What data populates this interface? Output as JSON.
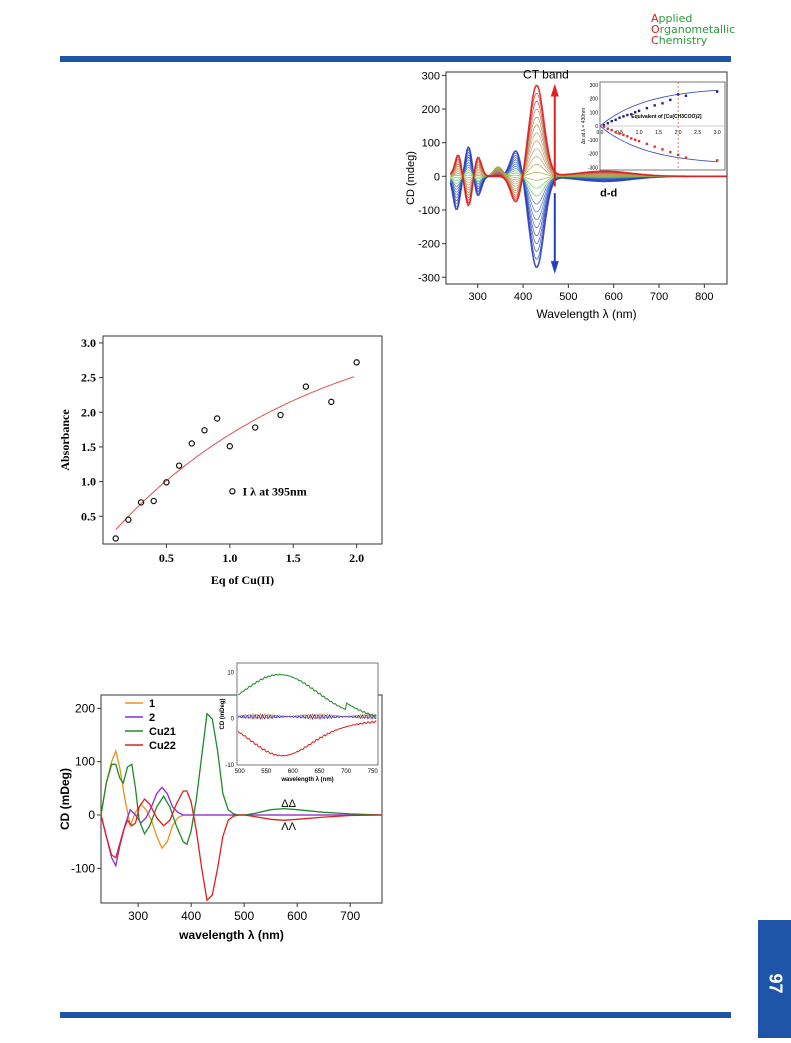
{
  "journal": {
    "line1_cap": "A",
    "line1_rest": "pplied",
    "line2_cap": "O",
    "line2_rest": "rganometallic",
    "line3_cap": "C",
    "line3_rest": "hemistry"
  },
  "page_number": "97",
  "colors": {
    "brand_blue": "#1f55a8",
    "logo_red": "#d42020",
    "logo_green": "#2a9a3a"
  },
  "chart_data": [
    {
      "type": "line",
      "xlabel": "Wavelength λ (nm)",
      "ylabel": "CD (mdeg)",
      "xlim": [
        230,
        850
      ],
      "ylim": [
        -320,
        310
      ],
      "xticks": [
        300,
        400,
        500,
        600,
        700,
        800
      ],
      "yticks": [
        -300,
        -200,
        -100,
        0,
        100,
        200,
        300
      ],
      "annotations": {
        "ct": "CT band",
        "dd": "d-d"
      },
      "series_colors": [
        "#2a3fb8",
        "#3a64c8",
        "#ef3d33",
        "#d92020",
        "#5ad24a",
        "#9aa83a",
        "#c49060",
        "#b07848"
      ],
      "inset": {
        "type": "scatter",
        "xlabel": "Equivalent of [Cu(CH3COO)2]",
        "ylabel": "Δε at λ = 430nm",
        "xlim": [
          0,
          3.2
        ],
        "ylim": [
          -320,
          320
        ],
        "xticks": [
          "0.0",
          "0.5",
          "1.0",
          "1.5",
          "2.0",
          "2.5",
          "3.0"
        ],
        "yticks": [
          "300",
          "200",
          "100",
          "0",
          "-100",
          "-200",
          "-300"
        ],
        "upper": {
          "x": [
            0.1,
            0.2,
            0.3,
            0.4,
            0.5,
            0.6,
            0.7,
            0.8,
            0.9,
            1.0,
            1.2,
            1.4,
            1.6,
            1.8,
            2.0,
            2.2,
            3.0
          ],
          "y": [
            5,
            20,
            35,
            45,
            60,
            70,
            80,
            85,
            100,
            110,
            130,
            150,
            165,
            190,
            230,
            220,
            250
          ]
        },
        "lower": {
          "x": [
            0.1,
            0.2,
            0.3,
            0.4,
            0.5,
            0.6,
            0.7,
            0.8,
            0.9,
            1.0,
            1.2,
            1.4,
            1.6,
            1.8,
            2.0,
            2.2,
            3.0
          ],
          "y": [
            -5,
            -20,
            -30,
            -45,
            -55,
            -65,
            -75,
            -90,
            -100,
            -110,
            -130,
            -150,
            -170,
            -190,
            -210,
            -230,
            -250
          ]
        }
      }
    },
    {
      "type": "scatter",
      "xlabel": "Eq of Cu(II)",
      "ylabel": "Absorbance",
      "xlim": [
        0,
        2.2
      ],
      "ylim": [
        0.1,
        3.1
      ],
      "xticks": [
        "0.5",
        "1.0",
        "1.5",
        "2.0"
      ],
      "yticks": [
        "0.5",
        "1.0",
        "1.5",
        "2.0",
        "2.5",
        "3.0"
      ],
      "legend": "I  λ at 395nm",
      "x": [
        0.1,
        0.2,
        0.3,
        0.4,
        0.5,
        0.6,
        0.7,
        0.8,
        0.9,
        1.0,
        1.2,
        1.4,
        1.6,
        1.8,
        2.0
      ],
      "y": [
        0.18,
        0.45,
        0.7,
        0.72,
        0.99,
        1.23,
        1.55,
        1.74,
        1.91,
        1.51,
        1.78,
        1.96,
        2.37,
        2.15,
        2.72
      ],
      "fit_color": "#e05050"
    },
    {
      "type": "line",
      "xlabel": "wavelength λ  (nm)",
      "ylabel": "CD (mDeg)",
      "xlim": [
        230,
        760
      ],
      "ylim": [
        -165,
        225
      ],
      "xticks": [
        300,
        400,
        500,
        600,
        700
      ],
      "yticks": [
        -100,
        0,
        100,
        200
      ],
      "series": [
        {
          "name": "1",
          "color": "#f0901a",
          "x": [
            230,
            240,
            250,
            258,
            265,
            275,
            285,
            295,
            305,
            315,
            325,
            335,
            345,
            355,
            365,
            375,
            385,
            395,
            405,
            420,
            450,
            500,
            760
          ],
          "y": [
            0,
            60,
            100,
            120,
            90,
            30,
            -20,
            5,
            20,
            10,
            -10,
            -40,
            -62,
            -50,
            -20,
            -5,
            0,
            0,
            0,
            0,
            0,
            0,
            0
          ]
        },
        {
          "name": "2",
          "color": "#8a2be2",
          "x": [
            230,
            240,
            250,
            258,
            265,
            275,
            285,
            295,
            305,
            315,
            325,
            335,
            345,
            355,
            365,
            375,
            385,
            395,
            405,
            420,
            450,
            500,
            760
          ],
          "y": [
            0,
            -40,
            -80,
            -95,
            -60,
            -20,
            10,
            0,
            -15,
            -5,
            15,
            40,
            52,
            40,
            15,
            5,
            0,
            0,
            0,
            0,
            0,
            0,
            0
          ]
        },
        {
          "name": "Cu21",
          "color": "#1f8a2a",
          "x": [
            230,
            240,
            250,
            258,
            265,
            272,
            280,
            288,
            295,
            302,
            312,
            322,
            335,
            348,
            360,
            372,
            385,
            392,
            400,
            410,
            420,
            430,
            440,
            450,
            460,
            470,
            480,
            490,
            500,
            520,
            550,
            575,
            600,
            650,
            700,
            760
          ],
          "y": [
            0,
            60,
            95,
            95,
            70,
            60,
            90,
            95,
            50,
            -10,
            -35,
            -20,
            15,
            35,
            15,
            -20,
            -50,
            -55,
            -30,
            30,
            110,
            190,
            180,
            120,
            40,
            10,
            2,
            0,
            0,
            3,
            10,
            12,
            10,
            5,
            2,
            0
          ]
        },
        {
          "name": "Cu22",
          "color": "#e02020",
          "x": [
            230,
            240,
            250,
            258,
            265,
            272,
            280,
            288,
            295,
            302,
            312,
            322,
            335,
            348,
            360,
            372,
            385,
            392,
            400,
            410,
            420,
            430,
            440,
            450,
            460,
            470,
            480,
            490,
            500,
            520,
            550,
            575,
            600,
            650,
            700,
            760
          ],
          "y": [
            0,
            -40,
            -75,
            -80,
            -55,
            -30,
            -10,
            -20,
            -15,
            15,
            30,
            20,
            -5,
            -20,
            -10,
            20,
            45,
            45,
            25,
            -30,
            -100,
            -160,
            -150,
            -100,
            -40,
            -10,
            -2,
            0,
            0,
            -3,
            -8,
            -10,
            -8,
            -4,
            -1,
            0
          ]
        }
      ],
      "labels": {
        "dd": "ΔΔ",
        "ll": "ΛΛ"
      },
      "inset": {
        "type": "line",
        "xlabel": "wavelength λ (nm)",
        "ylabel": "CD (mDeg)",
        "xlim": [
          495,
          760
        ],
        "ylim": [
          -10,
          12
        ],
        "xticks": [
          500,
          550,
          600,
          650,
          700,
          750
        ],
        "yticks": [
          10,
          0,
          -10
        ]
      }
    }
  ]
}
